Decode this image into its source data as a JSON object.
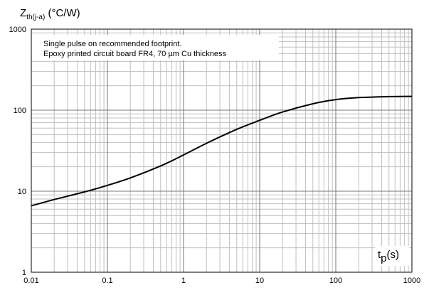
{
  "chart_data": {
    "type": "line",
    "title": "",
    "ylabel": {
      "main": "Z",
      "sub": "th(j-a)",
      "unit": " (°C/W)"
    },
    "xlabel": {
      "main": "t",
      "sub": "p",
      "unit": "(s)"
    },
    "annotation": [
      "Single pulse on recommended footprint.",
      "Epoxy printed circuit board FR4, 70 µm Cu thickness"
    ],
    "x_scale": "log",
    "y_scale": "log",
    "xlim": [
      0.01,
      1000
    ],
    "ylim": [
      1,
      1000
    ],
    "x_ticks": [
      "0.01",
      "0.1",
      "1",
      "10",
      "100",
      "1000"
    ],
    "y_ticks": [
      "1",
      "10",
      "100",
      "1000"
    ],
    "grid": true,
    "series": [
      {
        "x": [
          0.01,
          0.02,
          0.05,
          0.1,
          0.2,
          0.5,
          1,
          2,
          5,
          10,
          20,
          50,
          100,
          200,
          500,
          1000
        ],
        "y": [
          6.6,
          7.9,
          9.8,
          11.8,
          14.6,
          20.5,
          28,
          39,
          58,
          75,
          95,
          120,
          135,
          143,
          147,
          148
        ]
      }
    ]
  }
}
